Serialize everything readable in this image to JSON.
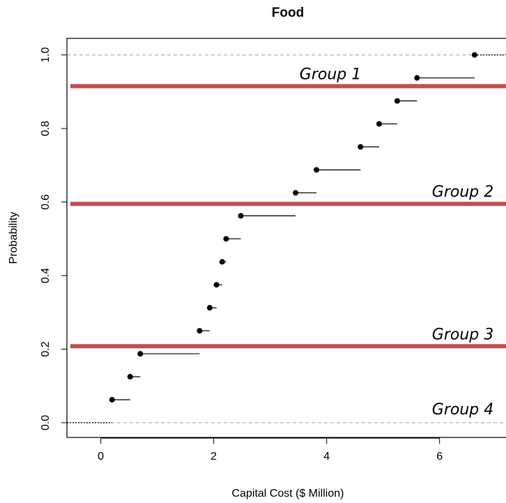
{
  "chart_data": {
    "type": "scatter",
    "subtype": "empirical-cdf-step",
    "title": "Food",
    "xlabel": "Capital Cost ($ Million)",
    "ylabel": "Probability",
    "xlim": [
      -0.6,
      7.3
    ],
    "ylim": [
      -0.04,
      1.045
    ],
    "xticks": [
      0,
      2,
      4,
      6
    ],
    "xtick_labels": [
      "0",
      "2",
      "4",
      "6"
    ],
    "yticks": [
      0.0,
      0.2,
      0.4,
      0.6,
      0.8,
      1.0
    ],
    "ytick_labels": [
      "0.0",
      "0.2",
      "0.4",
      "0.6",
      "0.8",
      "1.0"
    ],
    "grid": false,
    "points": [
      {
        "x": 0.2,
        "y": 0.0625
      },
      {
        "x": 0.52,
        "y": 0.125
      },
      {
        "x": 0.7,
        "y": 0.1875
      },
      {
        "x": 1.75,
        "y": 0.25
      },
      {
        "x": 1.93,
        "y": 0.3125
      },
      {
        "x": 2.05,
        "y": 0.375
      },
      {
        "x": 2.15,
        "y": 0.4375
      },
      {
        "x": 2.22,
        "y": 0.5
      },
      {
        "x": 2.48,
        "y": 0.5625
      },
      {
        "x": 3.45,
        "y": 0.625
      },
      {
        "x": 3.82,
        "y": 0.6875
      },
      {
        "x": 4.6,
        "y": 0.75
      },
      {
        "x": 4.93,
        "y": 0.8125
      },
      {
        "x": 5.25,
        "y": 0.875
      },
      {
        "x": 5.6,
        "y": 0.9375
      },
      {
        "x": 6.62,
        "y": 1.0
      }
    ],
    "reference_lines": [
      0.0,
      1.0
    ],
    "group_lines": [
      {
        "label": "Group 1",
        "y": 0.915
      },
      {
        "label": "Group 2",
        "y": 0.595
      },
      {
        "label": "Group 3",
        "y": 0.208
      },
      {
        "label": "Group 4",
        "y": 0.0
      }
    ],
    "colors": {
      "points": "#000000",
      "group_line": "#c0504d",
      "reference": "#b0b0b0"
    }
  }
}
